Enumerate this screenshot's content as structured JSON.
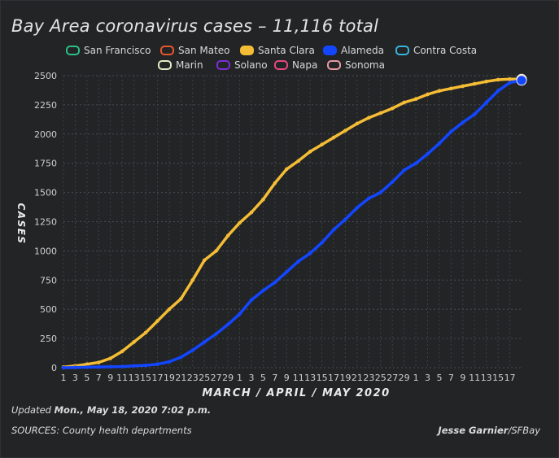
{
  "title": "Bay Area coronavirus cases – 11,116 total",
  "legend": [
    {
      "name": "San Francisco",
      "color": "#2bbf86",
      "active": false
    },
    {
      "name": "San Mateo",
      "color": "#e8562b",
      "active": false
    },
    {
      "name": "Santa Clara",
      "color": "#f5bd35",
      "active": true
    },
    {
      "name": "Alameda",
      "color": "#1346ff",
      "active": true
    },
    {
      "name": "Contra Costa",
      "color": "#38b4dc",
      "active": false
    },
    {
      "name": "Marin",
      "color": "#e6e9c6",
      "active": false
    },
    {
      "name": "Solano",
      "color": "#7b2fd6",
      "active": false
    },
    {
      "name": "Napa",
      "color": "#e8487e",
      "active": false
    },
    {
      "name": "Sonoma",
      "color": "#e89aa3",
      "active": false
    }
  ],
  "footer": {
    "updated_label": "Updated",
    "updated_value": "Mon., May 18, 2020 7:02 p.m.",
    "sources": "SOURCES: County health departments",
    "author": "Jesse Garnier",
    "outlet": "/SFBay"
  },
  "chart_data": {
    "type": "line",
    "ylabel": "CASES",
    "xlabel": "MARCH / APRIL / MAY 2020",
    "ylim": [
      0,
      2500
    ],
    "yticks": [
      0,
      250,
      500,
      750,
      1000,
      1250,
      1500,
      1750,
      2000,
      2250,
      2500
    ],
    "grid": true,
    "xtick_labels": [
      "1",
      "3",
      "5",
      "7",
      "9",
      "11",
      "13",
      "15",
      "17",
      "19",
      "21",
      "23",
      "25",
      "27",
      "29",
      "1",
      "3",
      "5",
      "7",
      "9",
      "11",
      "13",
      "15",
      "17",
      "19",
      "21",
      "23",
      "25",
      "27",
      "29",
      "1",
      "3",
      "5",
      "7",
      "9",
      "11",
      "13",
      "15",
      "17"
    ],
    "x": [
      "Mar 1",
      "Mar 3",
      "Mar 5",
      "Mar 7",
      "Mar 9",
      "Mar 11",
      "Mar 13",
      "Mar 15",
      "Mar 17",
      "Mar 19",
      "Mar 21",
      "Mar 23",
      "Mar 25",
      "Mar 27",
      "Mar 29",
      "Mar 31",
      "Apr 2",
      "Apr 4",
      "Apr 6",
      "Apr 8",
      "Apr 10",
      "Apr 12",
      "Apr 14",
      "Apr 16",
      "Apr 18",
      "Apr 20",
      "Apr 22",
      "Apr 24",
      "Apr 26",
      "Apr 28",
      "Apr 30",
      "May 2",
      "May 4",
      "May 6",
      "May 8",
      "May 10",
      "May 12",
      "May 14",
      "May 16",
      "May 17"
    ],
    "series": [
      {
        "name": "Santa Clara",
        "color": "#f5bd35",
        "values": [
          5,
          15,
          30,
          45,
          80,
          140,
          220,
          300,
          400,
          500,
          590,
          750,
          920,
          1000,
          1130,
          1240,
          1330,
          1440,
          1580,
          1700,
          1770,
          1850,
          1910,
          1970,
          2030,
          2090,
          2140,
          2180,
          2220,
          2270,
          2300,
          2340,
          2370,
          2390,
          2410,
          2430,
          2450,
          2465,
          2470,
          2470
        ]
      },
      {
        "name": "Alameda",
        "color": "#1346ff",
        "values": [
          0,
          2,
          4,
          6,
          8,
          10,
          15,
          20,
          30,
          50,
          90,
          150,
          220,
          290,
          370,
          460,
          580,
          660,
          730,
          820,
          910,
          980,
          1070,
          1180,
          1270,
          1370,
          1450,
          1500,
          1590,
          1690,
          1750,
          1830,
          1920,
          2020,
          2100,
          2170,
          2270,
          2370,
          2440,
          2460
        ]
      }
    ]
  }
}
